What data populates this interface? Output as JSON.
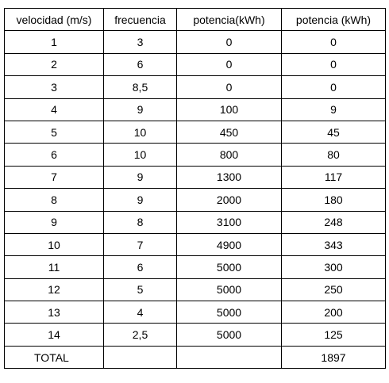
{
  "table": {
    "header": [
      "velocidad (m/s)",
      "frecuencia",
      "potencia(kWh)",
      "potencia (kWh)"
    ],
    "rows": [
      [
        "1",
        "3",
        "0",
        "0"
      ],
      [
        "2",
        "6",
        "0",
        "0"
      ],
      [
        "3",
        "8,5",
        "0",
        "0"
      ],
      [
        "4",
        "9",
        "100",
        "9"
      ],
      [
        "5",
        "10",
        "450",
        "45"
      ],
      [
        "6",
        "10",
        "800",
        "80"
      ],
      [
        "7",
        "9",
        "1300",
        "117"
      ],
      [
        "8",
        "9",
        "2000",
        "180"
      ],
      [
        "9",
        "8",
        "3100",
        "248"
      ],
      [
        "10",
        "7",
        "4900",
        "343"
      ],
      [
        "11",
        "6",
        "5000",
        "300"
      ],
      [
        "12",
        "5",
        "5000",
        "250"
      ],
      [
        "13",
        "4",
        "5000",
        "200"
      ],
      [
        "14",
        "2,5",
        "5000",
        "125"
      ]
    ],
    "total": [
      "TOTAL",
      null,
      null,
      "1897"
    ]
  }
}
